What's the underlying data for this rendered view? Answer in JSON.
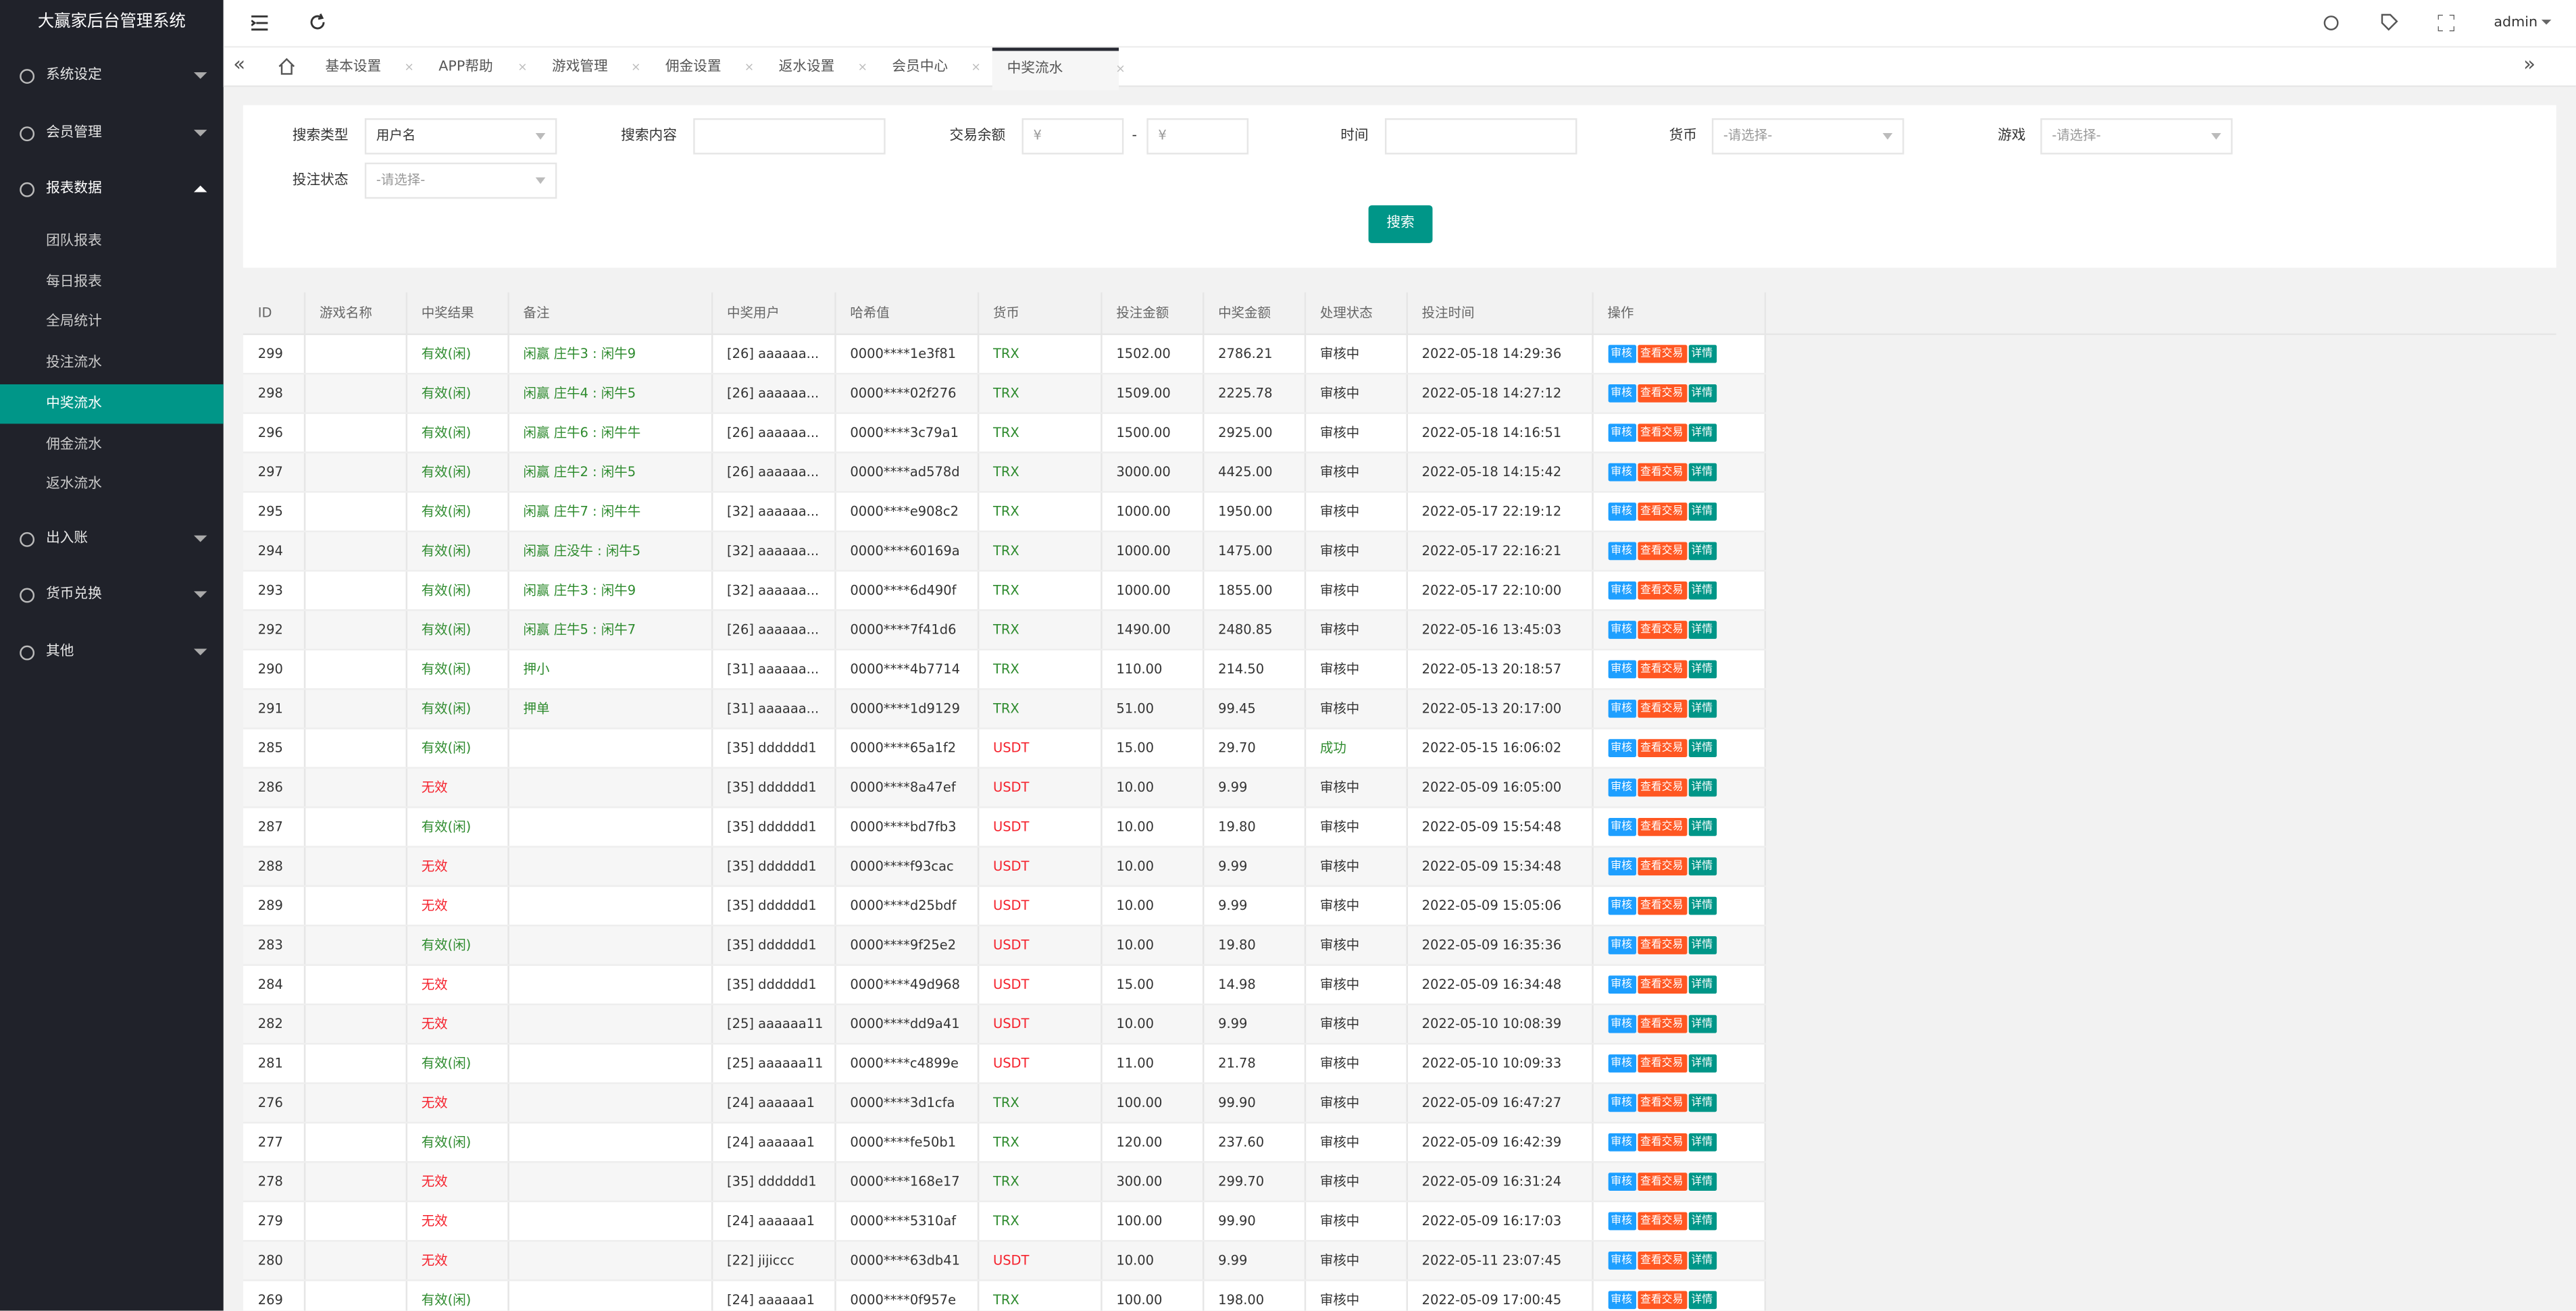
{
  "sidebar": {
    "title": "大赢家后台管理系统",
    "menu": [
      {
        "label": "系统设定"
      },
      {
        "label": "会员管理"
      },
      {
        "label": "报表数据",
        "children": [
          "团队报表",
          "每日报表",
          "全局统计",
          "投注流水",
          "中奖流水",
          "佣金流水",
          "返水流水"
        ]
      },
      {
        "label": "出入账"
      },
      {
        "label": "货币兑换"
      },
      {
        "label": "其他"
      }
    ]
  },
  "topbar": {
    "user": "admin"
  },
  "tabs": [
    "基本设置",
    "APP帮助",
    "游戏管理",
    "佣金设置",
    "返水设置",
    "会员中心",
    "中奖流水"
  ],
  "search": {
    "type_label": "搜索类型",
    "type_value": "用户名",
    "content_label": "搜索内容",
    "balance_label": "交易余额",
    "currency_symbol": "¥",
    "range_separator": "-",
    "time_label": "时间",
    "currency_label": "货币",
    "game_label": "游戏",
    "status_label": "投注状态",
    "placeholder": "-请选择-",
    "button": "搜索"
  },
  "table": {
    "columns": [
      "ID",
      "游戏名称",
      "中奖结果",
      "备注",
      "中奖用户",
      "哈希值",
      "货币",
      "投注金额",
      "中奖金额",
      "处理状态",
      "投注时间",
      "操作"
    ],
    "actions": [
      "审核",
      "查看交易",
      "详情"
    ],
    "color_by_text": {
      "有效(闲)": "#2e8b2e",
      "无效": "#f5222d",
      "TRX": "#2e8b2e",
      "USDT": "#f5222d",
      "成功": "#2e8b2e"
    },
    "remark_color": "#2e8b2e",
    "rows": [
      [
        "299",
        null,
        "有效(闲)",
        "闲赢 庄牛3 : 闲牛9",
        "[26] aaaaaa...",
        "0000****1e3f81",
        "TRX",
        "1502.00",
        "2786.21",
        "审核中",
        "2022-05-18 14:29:36"
      ],
      [
        "298",
        null,
        "有效(闲)",
        "闲赢 庄牛4 : 闲牛5",
        "[26] aaaaaa...",
        "0000****02f276",
        "TRX",
        "1509.00",
        "2225.78",
        "审核中",
        "2022-05-18 14:27:12"
      ],
      [
        "296",
        null,
        "有效(闲)",
        "闲赢 庄牛6 : 闲牛牛",
        "[26] aaaaaa...",
        "0000****3c79a1",
        "TRX",
        "1500.00",
        "2925.00",
        "审核中",
        "2022-05-18 14:16:51"
      ],
      [
        "297",
        null,
        "有效(闲)",
        "闲赢 庄牛2 : 闲牛5",
        "[26] aaaaaa...",
        "0000****ad578d",
        "TRX",
        "3000.00",
        "4425.00",
        "审核中",
        "2022-05-18 14:15:42"
      ],
      [
        "295",
        null,
        "有效(闲)",
        "闲赢 庄牛7 : 闲牛牛",
        "[32] aaaaaa...",
        "0000****e908c2",
        "TRX",
        "1000.00",
        "1950.00",
        "审核中",
        "2022-05-17 22:19:12"
      ],
      [
        "294",
        null,
        "有效(闲)",
        "闲赢 庄没牛 : 闲牛5",
        "[32] aaaaaa...",
        "0000****60169a",
        "TRX",
        "1000.00",
        "1475.00",
        "审核中",
        "2022-05-17 22:16:21"
      ],
      [
        "293",
        null,
        "有效(闲)",
        "闲赢 庄牛3 : 闲牛9",
        "[32] aaaaaa...",
        "0000****6d490f",
        "TRX",
        "1000.00",
        "1855.00",
        "审核中",
        "2022-05-17 22:10:00"
      ],
      [
        "292",
        null,
        "有效(闲)",
        "闲赢 庄牛5 : 闲牛7",
        "[26] aaaaaa...",
        "0000****7f41d6",
        "TRX",
        "1490.00",
        "2480.85",
        "审核中",
        "2022-05-16 13:45:03"
      ],
      [
        "290",
        null,
        "有效(闲)",
        "押小",
        "[31] aaaaaa...",
        "0000****4b7714",
        "TRX",
        "110.00",
        "214.50",
        "审核中",
        "2022-05-13 20:18:57"
      ],
      [
        "291",
        null,
        "有效(闲)",
        "押单",
        "[31] aaaaaa...",
        "0000****1d9129",
        "TRX",
        "51.00",
        "99.45",
        "审核中",
        "2022-05-13 20:17:00"
      ],
      [
        "285",
        null,
        "有效(闲)",
        null,
        "[35] dddddd1",
        "0000****65a1f2",
        "USDT",
        "15.00",
        "29.70",
        "成功",
        "2022-05-15 16:06:02"
      ],
      [
        "286",
        null,
        "无效",
        null,
        "[35] dddddd1",
        "0000****8a47ef",
        "USDT",
        "10.00",
        "9.99",
        "审核中",
        "2022-05-09 16:05:00"
      ],
      [
        "287",
        null,
        "有效(闲)",
        null,
        "[35] dddddd1",
        "0000****bd7fb3",
        "USDT",
        "10.00",
        "19.80",
        "审核中",
        "2022-05-09 15:54:48"
      ],
      [
        "288",
        null,
        "无效",
        null,
        "[35] dddddd1",
        "0000****f93cac",
        "USDT",
        "10.00",
        "9.99",
        "审核中",
        "2022-05-09 15:34:48"
      ],
      [
        "289",
        null,
        "无效",
        null,
        "[35] dddddd1",
        "0000****d25bdf",
        "USDT",
        "10.00",
        "9.99",
        "审核中",
        "2022-05-09 15:05:06"
      ],
      [
        "283",
        null,
        "有效(闲)",
        null,
        "[35] dddddd1",
        "0000****9f25e2",
        "USDT",
        "10.00",
        "19.80",
        "审核中",
        "2022-05-09 16:35:36"
      ],
      [
        "284",
        null,
        "无效",
        null,
        "[35] dddddd1",
        "0000****49d968",
        "USDT",
        "15.00",
        "14.98",
        "审核中",
        "2022-05-09 16:34:48"
      ],
      [
        "282",
        null,
        "无效",
        null,
        "[25] aaaaaa11",
        "0000****dd9a41",
        "USDT",
        "10.00",
        "9.99",
        "审核中",
        "2022-05-10 10:08:39"
      ],
      [
        "281",
        null,
        "有效(闲)",
        null,
        "[25] aaaaaa11",
        "0000****c4899e",
        "USDT",
        "11.00",
        "21.78",
        "审核中",
        "2022-05-10 10:09:33"
      ],
      [
        "276",
        null,
        "无效",
        null,
        "[24] aaaaaa1",
        "0000****3d1cfa",
        "TRX",
        "100.00",
        "99.90",
        "审核中",
        "2022-05-09 16:47:27"
      ],
      [
        "277",
        null,
        "有效(闲)",
        null,
        "[24] aaaaaa1",
        "0000****fe50b1",
        "TRX",
        "120.00",
        "237.60",
        "审核中",
        "2022-05-09 16:42:39"
      ],
      [
        "278",
        null,
        "无效",
        null,
        "[35] dddddd1",
        "0000****168e17",
        "TRX",
        "300.00",
        "299.70",
        "审核中",
        "2022-05-09 16:31:24"
      ],
      [
        "279",
        null,
        "无效",
        null,
        "[24] aaaaaa1",
        "0000****5310af",
        "TRX",
        "100.00",
        "99.90",
        "审核中",
        "2022-05-09 16:17:03"
      ],
      [
        "280",
        null,
        "无效",
        null,
        "[22] jijiccc",
        "0000****63db41",
        "USDT",
        "10.00",
        "9.99",
        "审核中",
        "2022-05-11 23:07:45"
      ],
      [
        "269",
        null,
        "有效(闲)",
        null,
        "[24] aaaaaa1",
        "0000****0f957e",
        "TRX",
        "100.00",
        "198.00",
        "审核中",
        "2022-05-09 17:00:45"
      ]
    ]
  }
}
